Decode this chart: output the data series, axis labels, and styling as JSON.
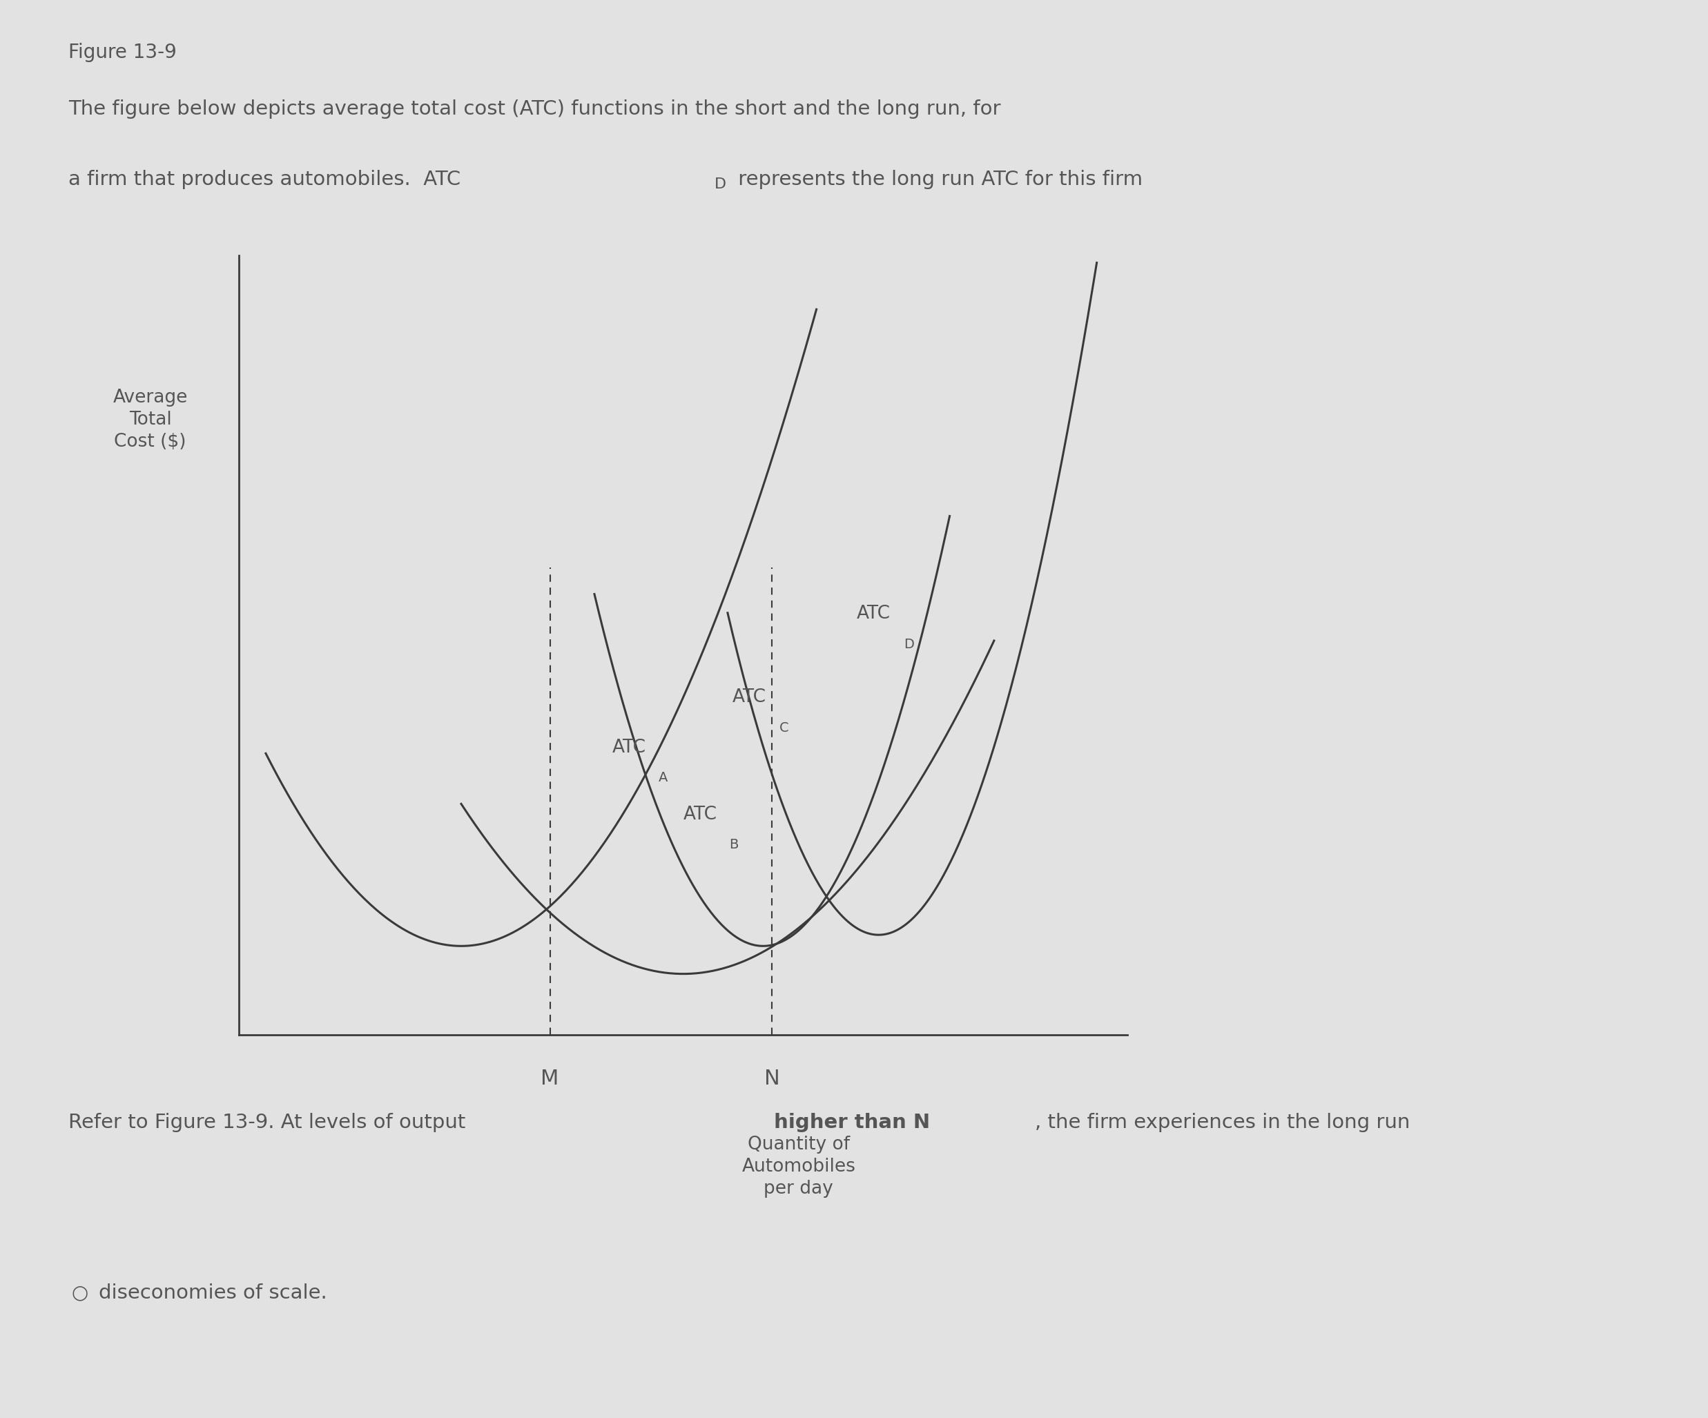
{
  "figure_label": "Figure 13-9",
  "desc1": "The figure below depicts average total cost (ATC) functions in the short and the long run, for",
  "desc2a": "a firm that produces automobiles.  ATC",
  "desc2sub": "D",
  "desc2b": " represents the long run ATC for this firm",
  "ylabel": "Average\nTotal\nCost ($)",
  "xlabel1": "Quantity of",
  "xlabel2": "Automobiles",
  "xlabel3": "per day",
  "tick_M": "M",
  "tick_N": "N",
  "refer_text1": "Refer to Figure 13-9. At levels of output ",
  "refer_bold": "higher than N",
  "refer_text2": ", the firm experiences in the long run",
  "answer_text": "diseconomies of scale.",
  "bg_color": "#e2e2e2",
  "text_color": "#555555",
  "curve_color": "#3a3a3a",
  "axis_color": "#3a3a3a",
  "fig_width": 24.74,
  "fig_height": 20.54
}
